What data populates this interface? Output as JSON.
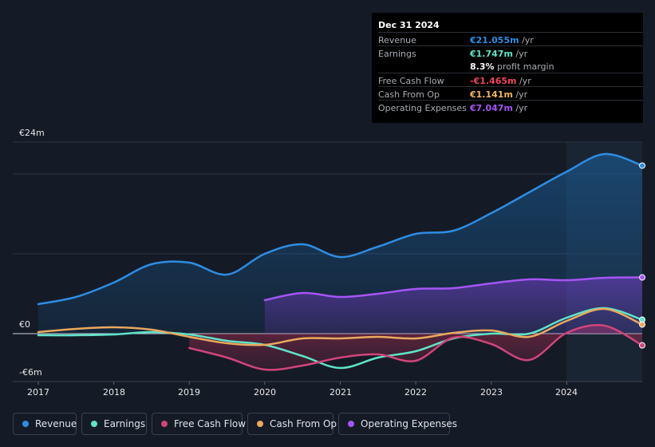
{
  "tooltip": {
    "date": "Dec 31 2024",
    "rows": [
      {
        "label": "Revenue",
        "value": "€21.055m",
        "unit": " /yr",
        "color": "#2e8de3"
      },
      {
        "label": "Earnings",
        "value": "€1.747m",
        "unit": " /yr",
        "color": "#ffffff"
      },
      {
        "label": "",
        "value": "8.3%",
        "unit": " profit margin",
        "color": "#ffffff"
      },
      {
        "label": "Free Cash Flow",
        "value": "-€1.465m",
        "unit": " /yr",
        "color": "#f0455a"
      },
      {
        "label": "Cash From Op",
        "value": "€1.141m",
        "unit": " /yr",
        "color": "#f0b366"
      },
      {
        "label": "Operating Expenses",
        "value": "€7.047m",
        "unit": " /yr",
        "color": "#a655f5"
      }
    ]
  },
  "legend": [
    {
      "label": "Revenue",
      "color": "#2e8de3"
    },
    {
      "label": "Earnings",
      "color": "#5fe3c9"
    },
    {
      "label": "Free Cash Flow",
      "color": "#d0457b"
    },
    {
      "label": "Cash From Op",
      "color": "#eaa95e"
    },
    {
      "label": "Operating Expenses",
      "color": "#a655f5"
    }
  ],
  "chart_data": {
    "type": "line",
    "y_tick_labels": [
      "€24m",
      "€0",
      "-€6m"
    ],
    "ylim": [
      -6,
      24
    ],
    "x_tick_labels": [
      "2017",
      "2018",
      "2019",
      "2020",
      "2021",
      "2022",
      "2023",
      "2024"
    ],
    "xlim": [
      2017,
      2025
    ],
    "forecast_start": 2024,
    "series": [
      {
        "name": "Revenue",
        "color": "#2e8de3",
        "x": [
          2017.0,
          2017.5,
          2018.0,
          2018.5,
          2019.0,
          2019.5,
          2020.0,
          2020.5,
          2021.0,
          2021.5,
          2022.0,
          2022.5,
          2023.0,
          2023.5,
          2024.0,
          2024.5,
          2025.0
        ],
        "values": [
          3.7,
          4.6,
          6.4,
          8.7,
          8.9,
          7.4,
          10.0,
          11.2,
          9.6,
          10.9,
          12.5,
          12.9,
          15.1,
          17.7,
          20.3,
          22.5,
          21.055
        ]
      },
      {
        "name": "Earnings",
        "color": "#5fe3c9",
        "x": [
          2017.0,
          2017.5,
          2018.0,
          2018.5,
          2019.0,
          2019.5,
          2020.0,
          2020.5,
          2021.0,
          2021.5,
          2022.0,
          2022.5,
          2023.0,
          2023.5,
          2024.0,
          2024.5,
          2025.0
        ],
        "values": [
          -0.2,
          -0.2,
          -0.1,
          0.2,
          -0.1,
          -0.9,
          -1.4,
          -2.8,
          -4.3,
          -3.0,
          -2.2,
          -0.6,
          0.0,
          0.0,
          2.0,
          3.2,
          1.747
        ]
      },
      {
        "name": "Free Cash Flow",
        "color": "#d0457b",
        "x": [
          2019.0,
          2019.5,
          2020.0,
          2020.5,
          2021.0,
          2021.5,
          2022.0,
          2022.5,
          2023.0,
          2023.5,
          2024.0,
          2024.5,
          2025.0
        ],
        "values": [
          -1.8,
          -3.0,
          -4.5,
          -4.0,
          -3.0,
          -2.6,
          -3.4,
          -0.5,
          -1.3,
          -3.3,
          0.1,
          1.0,
          -1.465
        ]
      },
      {
        "name": "Cash From Op",
        "color": "#eaa95e",
        "x": [
          2017.0,
          2017.5,
          2018.0,
          2018.5,
          2019.0,
          2019.5,
          2020.0,
          2020.5,
          2021.0,
          2021.5,
          2022.0,
          2022.5,
          2023.0,
          2023.5,
          2024.0,
          2024.5,
          2025.0
        ],
        "values": [
          0.2,
          0.6,
          0.8,
          0.5,
          -0.4,
          -1.2,
          -1.4,
          -0.6,
          -0.6,
          -0.4,
          -0.6,
          0.1,
          0.4,
          -0.4,
          1.6,
          3.1,
          1.141
        ]
      },
      {
        "name": "Operating Expenses",
        "color": "#a655f5",
        "x": [
          2020.0,
          2020.5,
          2021.0,
          2021.5,
          2022.0,
          2022.5,
          2023.0,
          2023.5,
          2024.0,
          2024.5,
          2025.0
        ],
        "values": [
          4.2,
          5.1,
          4.6,
          5.0,
          5.6,
          5.7,
          6.3,
          6.8,
          6.7,
          7.0,
          7.047
        ]
      }
    ]
  }
}
